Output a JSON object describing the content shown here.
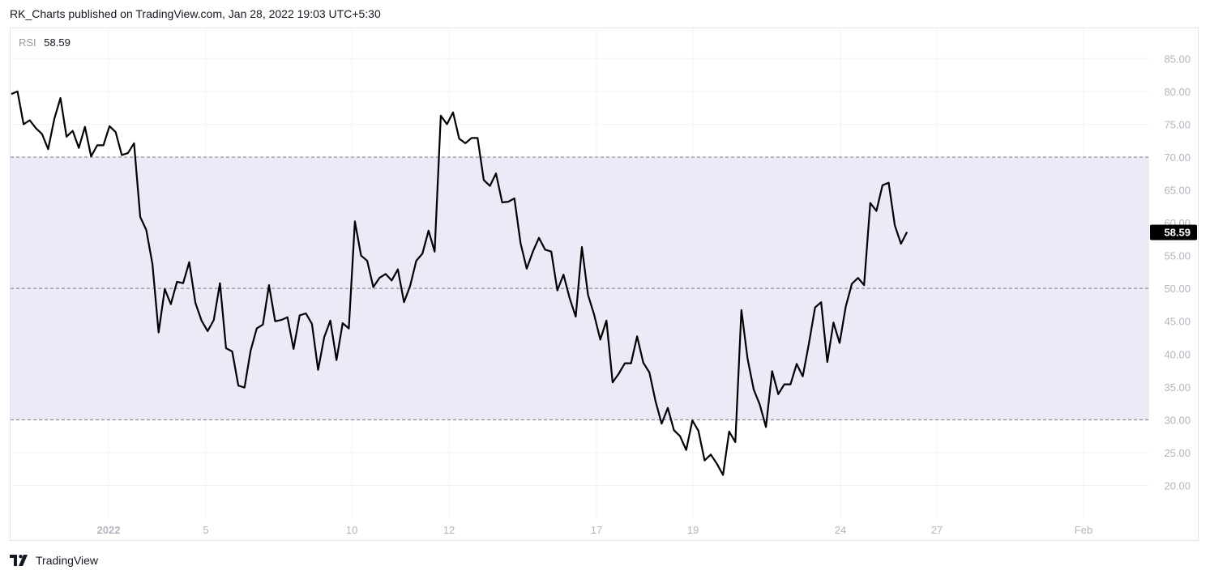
{
  "header": {
    "text": "RK_Charts published on TradingView.com, Jan 28, 2022 19:03 UTC+5:30"
  },
  "footer": {
    "brand": "TradingView"
  },
  "legend": {
    "name": "RSI",
    "value": "58.59"
  },
  "colors": {
    "line": "#000000",
    "band": "#ede9f7",
    "grid": "#f0f3fa",
    "dashed": "#787b86",
    "label_bg": "#000000"
  },
  "chart_data": {
    "type": "line",
    "series": [
      {
        "name": "RSI",
        "values": [
          79.6,
          80,
          75,
          75.6,
          74.4,
          73.5,
          71.2,
          75.8,
          79,
          73.1,
          74,
          71.4,
          74.6,
          70.1,
          71.8,
          71.8,
          74.7,
          73.8,
          70.3,
          70.6,
          72.1,
          60.9,
          58.9,
          53.7,
          43.3,
          49.9,
          47.6,
          51,
          50.8,
          54,
          47.8,
          45.1,
          43.5,
          45.2,
          50.8,
          40.9,
          40.4,
          35.2,
          34.9,
          40.5,
          43.9,
          44.5,
          50.5,
          45,
          45.2,
          45.6,
          40.8,
          45.9,
          46.2,
          44.6,
          37.6,
          42.6,
          45.1,
          39.1,
          44.7,
          43.9,
          60.2,
          55,
          54.2,
          50.2,
          51.6,
          52.2,
          51.2,
          52.9,
          47.9,
          50.4,
          54.2,
          55.3,
          58.8,
          55.6,
          76.3,
          75,
          76.8,
          72.8,
          72.1,
          72.9,
          72.9,
          66.5,
          65.6,
          67.5,
          63.1,
          63.2,
          63.7,
          56.9,
          53,
          55.6,
          57.7,
          55.9,
          55.6,
          49.7,
          52.1,
          48.5,
          45.7,
          56.3,
          49,
          46,
          42.2,
          45.1,
          35.7,
          37,
          38.6,
          38.6,
          42.7,
          38.7,
          37.2,
          32.8,
          29.4,
          31.8,
          28.4,
          27.5,
          25.4,
          29.9,
          28.3,
          23.8,
          24.7,
          23.3,
          21.6,
          28.2,
          26.6,
          46.7,
          39.3,
          34.6,
          32.3,
          28.9,
          37.4,
          33.9,
          35.4,
          35.4,
          38.5,
          36.6,
          41.6,
          47.1,
          47.9,
          38.8,
          44.8,
          41.7,
          47.2,
          50.7,
          51.6,
          50.5,
          63,
          61.8,
          65.7,
          66.1,
          59.6,
          56.8,
          58.59
        ]
      }
    ],
    "ylim": [
      15,
      89.6
    ],
    "yticks": [
      "85.00",
      "80.00",
      "75.00",
      "70.00",
      "65.00",
      "60.00",
      "55.00",
      "50.00",
      "45.00",
      "40.00",
      "35.00",
      "30.00",
      "25.00",
      "20.00"
    ],
    "levels": [
      70,
      50,
      30
    ],
    "band": [
      30,
      70
    ],
    "current_value": "58.59",
    "xticks": [
      "2022",
      "5",
      "10",
      "12",
      "17",
      "19",
      "24",
      "27",
      "Feb"
    ],
    "grid": true
  }
}
